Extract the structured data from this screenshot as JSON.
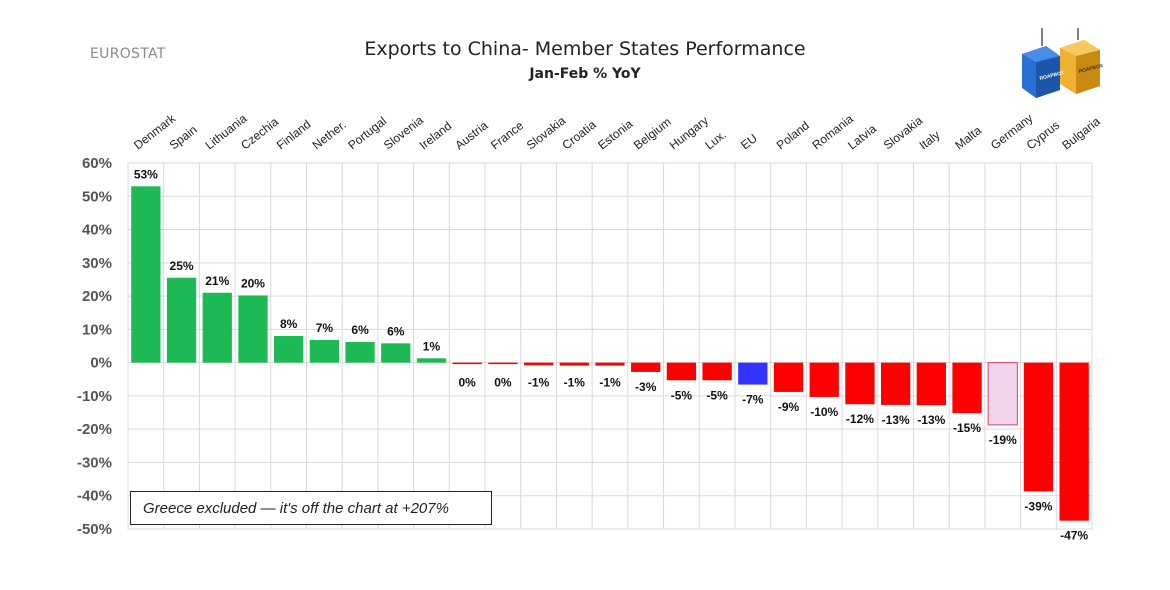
{
  "source_label": "EUROSTAT",
  "colors": {
    "positive": "#1db954",
    "negative": "#ff0000",
    "eu": "#3333ff",
    "germany": "#f2d5ea",
    "germany_border": "#d5426f",
    "grid": "#d9d9d9"
  },
  "logo": {
    "icon": "shipping-containers-icon",
    "container_text_left": "ROAPBOX",
    "container_text_right": "ROAPBOX"
  },
  "chart_data": {
    "type": "bar",
    "title": "Exports to China- Member States Performance",
    "subtitle": "Jan-Feb % YoY",
    "ylim": [
      -50,
      60
    ],
    "yticks": [
      60,
      50,
      40,
      30,
      20,
      10,
      0,
      -10,
      -20,
      -30,
      -40,
      -50
    ],
    "ytick_labels": [
      "60%",
      "50%",
      "40%",
      "30%",
      "20%",
      "10%",
      "0%",
      "-10%",
      "-20%",
      "-30%",
      "-40%",
      "-50%"
    ],
    "grid": true,
    "categories": [
      "Denmark",
      "Spain",
      "Lithuania",
      "Czechia",
      "Finland",
      "Nether.",
      "Portugal",
      "Slovenia",
      "Ireland",
      "Austria",
      "France",
      "Slovakia",
      "Croatia",
      "Estonia",
      "Belgium",
      "Hungary",
      "Lux.",
      "EU",
      "Poland",
      "Romania",
      "Latvia",
      "Slovakia",
      "Italy",
      "Malta",
      "Germany",
      "Cyprus",
      "Bulgaria"
    ],
    "values": [
      53,
      25.5,
      21,
      20.2,
      8,
      6.8,
      6.2,
      5.8,
      1.3,
      -0.3,
      -0.3,
      -0.8,
      -0.9,
      -0.9,
      -2.8,
      -5.3,
      -5.3,
      -6.6,
      -8.8,
      -10.3,
      -12.5,
      -12.7,
      -12.8,
      -15.2,
      -18.7,
      -38.7,
      -47.5
    ],
    "labels": [
      "53%",
      "25%",
      "21%",
      "20%",
      "8%",
      "7%",
      "6%",
      "6%",
      "1%",
      "0%",
      "0%",
      "-1%",
      "-1%",
      "-1%",
      "-3%",
      "-5%",
      "-5%",
      "-7%",
      "-9%",
      "-10%",
      "-12%",
      "-13%",
      "-13%",
      "-15%",
      "-19%",
      "-39%",
      "-47%"
    ],
    "highlight": {
      "EU": "eu",
      "Germany": "germany"
    },
    "annotation": "Greece excluded — it's off the chart at +207%"
  }
}
